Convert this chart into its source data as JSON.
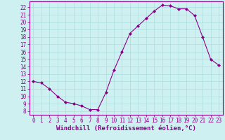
{
  "x": [
    0,
    1,
    2,
    3,
    4,
    5,
    6,
    7,
    8,
    9,
    10,
    11,
    12,
    13,
    14,
    15,
    16,
    17,
    18,
    19,
    20,
    21,
    22,
    23
  ],
  "y": [
    12,
    11.8,
    11,
    10,
    9.2,
    9.0,
    8.7,
    8.2,
    8.2,
    10.5,
    13.5,
    16,
    18.5,
    19.5,
    20.5,
    21.5,
    22.3,
    22.2,
    21.8,
    21.8,
    20.9,
    18,
    15,
    14.2
  ],
  "line_color": "#8B008B",
  "marker": "D",
  "marker_size": 2,
  "bg_color": "#cff0f0",
  "grid_color": "#aadddd",
  "xlabel": "Windchill (Refroidissement éolien,°C)",
  "xlabel_fontsize": 6.5,
  "xlim": [
    -0.5,
    23.5
  ],
  "ylim": [
    7.5,
    22.8
  ],
  "yticks": [
    8,
    9,
    10,
    11,
    12,
    13,
    14,
    15,
    16,
    17,
    18,
    19,
    20,
    21,
    22
  ],
  "xticks": [
    0,
    1,
    2,
    3,
    4,
    5,
    6,
    7,
    8,
    9,
    10,
    11,
    12,
    13,
    14,
    15,
    16,
    17,
    18,
    19,
    20,
    21,
    22,
    23
  ],
  "tick_fontsize": 5.5,
  "spine_color": "#880088",
  "axis_bg": "#cff0f0",
  "linewidth": 0.8
}
